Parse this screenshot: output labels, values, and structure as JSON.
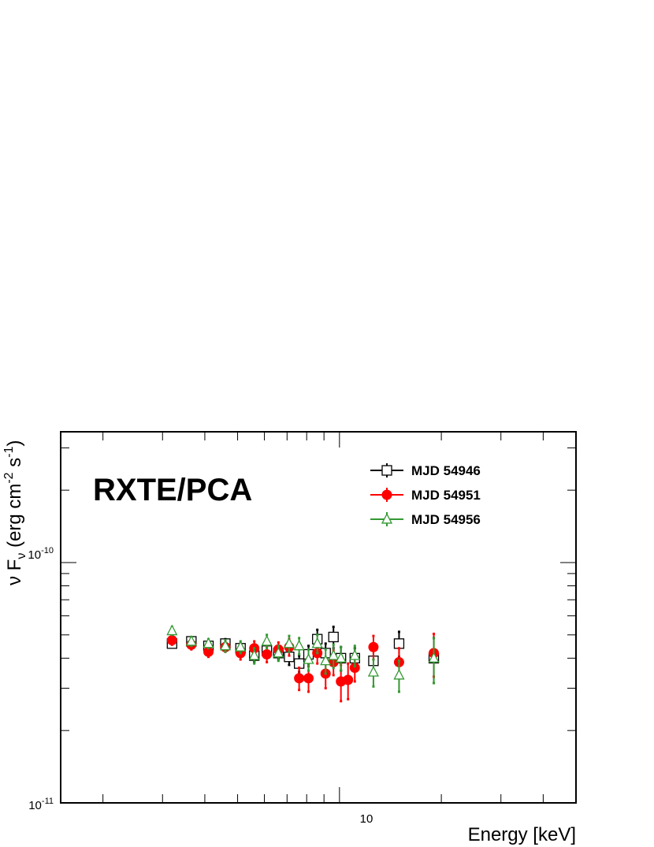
{
  "chart_data": {
    "type": "scatter",
    "title": "RXTE/PCA",
    "xlabel": "Energy [keV]",
    "ylabel": {
      "nu": "ν",
      "F": "F",
      "sub": "ν",
      "open": "(erg cm",
      "exp1": "-2",
      "mid": " s",
      "exp2": "-1",
      "close": ")"
    },
    "x_scale": "log",
    "y_scale": "log",
    "xlim": [
      1.5,
      50
    ],
    "ylim": [
      1e-11,
      3.5e-10
    ],
    "y_ticks": [
      {
        "value": 1e-10,
        "base": "10",
        "exp": "-10"
      },
      {
        "value": 1e-11,
        "base": "10",
        "exp": "-11"
      }
    ],
    "x_ticks": [
      {
        "value": 10,
        "label": "10"
      }
    ],
    "legend_position": "top-right",
    "grid": false,
    "series": [
      {
        "name": "MJD 54946",
        "color": "#000000",
        "marker": "open-square",
        "points": [
          {
            "x": 3.2,
            "y": 4.6e-11,
            "err": 1.5e-12
          },
          {
            "x": 3.65,
            "y": 4.7e-11,
            "err": 1.5e-12
          },
          {
            "x": 4.1,
            "y": 4.5e-11,
            "err": 1.5e-12
          },
          {
            "x": 4.6,
            "y": 4.6e-11,
            "err": 2e-12
          },
          {
            "x": 5.1,
            "y": 4.4e-11,
            "err": 2e-12
          },
          {
            "x": 5.6,
            "y": 4.1e-11,
            "err": 2.5e-12
          },
          {
            "x": 6.1,
            "y": 4.3e-11,
            "err": 2e-12
          },
          {
            "x": 6.6,
            "y": 4.2e-11,
            "err": 2.5e-12
          },
          {
            "x": 7.1,
            "y": 4.05e-11,
            "err": 3e-12
          },
          {
            "x": 7.6,
            "y": 3.8e-11,
            "err": 3e-12
          },
          {
            "x": 8.1,
            "y": 4.15e-11,
            "err": 3.5e-12
          },
          {
            "x": 8.6,
            "y": 4.8e-11,
            "err": 4.5e-12
          },
          {
            "x": 9.1,
            "y": 4.2e-11,
            "err": 4e-12
          },
          {
            "x": 9.6,
            "y": 4.9e-11,
            "err": 5e-12
          },
          {
            "x": 10.1,
            "y": 4e-11,
            "err": 4.5e-12
          },
          {
            "x": 11.1,
            "y": 4e-11,
            "err": 4e-12
          },
          {
            "x": 12.6,
            "y": 3.9e-11,
            "err": 4e-12
          },
          {
            "x": 15.0,
            "y": 4.6e-11,
            "err": 5.5e-12
          },
          {
            "x": 19.0,
            "y": 4e-11,
            "err": 8.5e-12
          }
        ]
      },
      {
        "name": "MJD 54951",
        "color": "#ff0000",
        "marker": "filled-circle",
        "points": [
          {
            "x": 3.2,
            "y": 4.75e-11,
            "err": 2e-12
          },
          {
            "x": 3.65,
            "y": 4.55e-11,
            "err": 2e-12
          },
          {
            "x": 4.1,
            "y": 4.25e-11,
            "err": 2e-12
          },
          {
            "x": 4.6,
            "y": 4.45e-11,
            "err": 2e-12
          },
          {
            "x": 5.1,
            "y": 4.2e-11,
            "err": 2.5e-12
          },
          {
            "x": 5.6,
            "y": 4.4e-11,
            "err": 3e-12
          },
          {
            "x": 6.1,
            "y": 4.15e-11,
            "err": 3e-12
          },
          {
            "x": 6.6,
            "y": 4.35e-11,
            "err": 3e-12
          },
          {
            "x": 7.1,
            "y": 4.45e-11,
            "err": 3.5e-12
          },
          {
            "x": 7.6,
            "y": 3.3e-11,
            "err": 3.5e-12
          },
          {
            "x": 8.1,
            "y": 3.3e-11,
            "err": 4e-12
          },
          {
            "x": 8.6,
            "y": 4.2e-11,
            "err": 4e-12
          },
          {
            "x": 9.1,
            "y": 3.45e-11,
            "err": 4.5e-12
          },
          {
            "x": 9.6,
            "y": 3.85e-11,
            "err": 4.5e-12
          },
          {
            "x": 10.1,
            "y": 3.2e-11,
            "err": 5.5e-12
          },
          {
            "x": 10.6,
            "y": 3.25e-11,
            "err": 5.5e-12
          },
          {
            "x": 11.1,
            "y": 3.65e-11,
            "err": 4.5e-12
          },
          {
            "x": 12.6,
            "y": 4.45e-11,
            "err": 5e-12
          },
          {
            "x": 15.0,
            "y": 3.85e-11,
            "err": 5.5e-12
          },
          {
            "x": 19.0,
            "y": 4.2e-11,
            "err": 8.5e-12
          }
        ]
      },
      {
        "name": "MJD 54956",
        "color": "#339933",
        "marker": "open-triangle",
        "points": [
          {
            "x": 3.2,
            "y": 5.2e-11,
            "err": 2e-12
          },
          {
            "x": 3.65,
            "y": 4.7e-11,
            "err": 2e-12
          },
          {
            "x": 4.1,
            "y": 4.6e-11,
            "err": 2e-12
          },
          {
            "x": 4.6,
            "y": 4.5e-11,
            "err": 2.5e-12
          },
          {
            "x": 5.1,
            "y": 4.45e-11,
            "err": 2.5e-12
          },
          {
            "x": 5.6,
            "y": 4.1e-11,
            "err": 3e-12
          },
          {
            "x": 6.1,
            "y": 4.7e-11,
            "err": 3e-12
          },
          {
            "x": 6.6,
            "y": 4.2e-11,
            "err": 3e-12
          },
          {
            "x": 7.1,
            "y": 4.6e-11,
            "err": 3.5e-12
          },
          {
            "x": 7.6,
            "y": 4.5e-11,
            "err": 3.5e-12
          },
          {
            "x": 8.1,
            "y": 3.95e-11,
            "err": 4e-12
          },
          {
            "x": 8.6,
            "y": 4.6e-11,
            "err": 4e-12
          },
          {
            "x": 9.1,
            "y": 3.9e-11,
            "err": 4.5e-12
          },
          {
            "x": 9.6,
            "y": 4.1e-11,
            "err": 4.5e-12
          },
          {
            "x": 10.1,
            "y": 4e-11,
            "err": 4.5e-12
          },
          {
            "x": 11.1,
            "y": 4.1e-11,
            "err": 4e-12
          },
          {
            "x": 12.6,
            "y": 3.5e-11,
            "err": 4.5e-12
          },
          {
            "x": 15.0,
            "y": 3.4e-11,
            "err": 5e-12
          },
          {
            "x": 19.0,
            "y": 4e-11,
            "err": 8.5e-12
          }
        ]
      }
    ]
  }
}
